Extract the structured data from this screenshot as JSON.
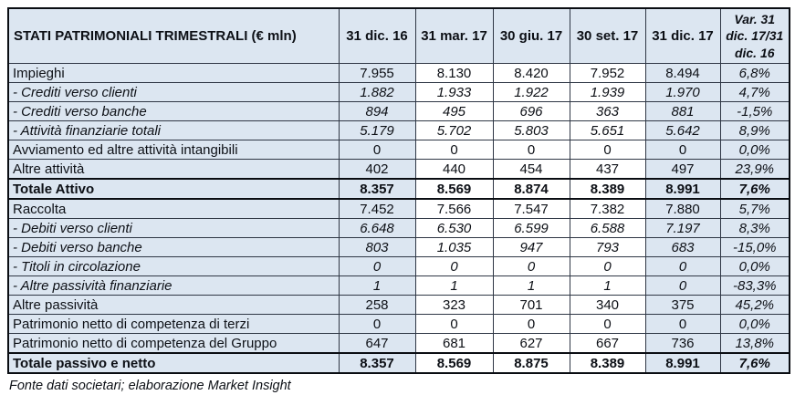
{
  "table": {
    "header": {
      "label": "STATI PATRIMONIALI TRIMESTRALI (€ mln)",
      "columns": [
        "31 dic. 16",
        "31 mar. 17",
        "30 giu. 17",
        "30 set. 17",
        "31 dic. 17"
      ],
      "var_column": "Var. 31 dic. 17/31 dic. 16"
    },
    "rows": [
      {
        "label": "Impieghi",
        "values": [
          "7.955",
          "8.130",
          "8.420",
          "7.952",
          "8.494"
        ],
        "var": "6,8%",
        "style": "normal"
      },
      {
        "label": "- Crediti verso clienti",
        "values": [
          "1.882",
          "1.933",
          "1.922",
          "1.939",
          "1.970"
        ],
        "var": "4,7%",
        "style": "sub"
      },
      {
        "label": "- Crediti verso banche",
        "values": [
          "894",
          "495",
          "696",
          "363",
          "881"
        ],
        "var": "-1,5%",
        "style": "sub"
      },
      {
        "label": "- Attività finanziarie totali",
        "values": [
          "5.179",
          "5.702",
          "5.803",
          "5.651",
          "5.642"
        ],
        "var": "8,9%",
        "style": "sub"
      },
      {
        "label": "Avviamento ed altre attività intangibili",
        "values": [
          "0",
          "0",
          "0",
          "0",
          "0"
        ],
        "var": "0,0%",
        "style": "normal"
      },
      {
        "label": "Altre attività",
        "values": [
          "402",
          "440",
          "454",
          "437",
          "497"
        ],
        "var": "23,9%",
        "style": "normal"
      },
      {
        "label": "Totale Attivo",
        "values": [
          "8.357",
          "8.569",
          "8.874",
          "8.389",
          "8.991"
        ],
        "var": "7,6%",
        "style": "total"
      },
      {
        "label": "Raccolta",
        "values": [
          "7.452",
          "7.566",
          "7.547",
          "7.382",
          "7.880"
        ],
        "var": "5,7%",
        "style": "normal"
      },
      {
        "label": "- Debiti verso clienti",
        "values": [
          "6.648",
          "6.530",
          "6.599",
          "6.588",
          "7.197"
        ],
        "var": "8,3%",
        "style": "sub"
      },
      {
        "label": "- Debiti verso banche",
        "values": [
          "803",
          "1.035",
          "947",
          "793",
          "683"
        ],
        "var": "-15,0%",
        "style": "sub"
      },
      {
        "label": "- Titoli in circolazione",
        "values": [
          "0",
          "0",
          "0",
          "0",
          "0"
        ],
        "var": "0,0%",
        "style": "sub"
      },
      {
        "label": "- Altre passività finanziarie",
        "values": [
          "1",
          "1",
          "1",
          "1",
          "0"
        ],
        "var": "-83,3%",
        "style": "sub"
      },
      {
        "label": "Altre passività",
        "values": [
          "258",
          "323",
          "701",
          "340",
          "375"
        ],
        "var": "45,2%",
        "style": "normal"
      },
      {
        "label": "Patrimonio netto di competenza di terzi",
        "values": [
          "0",
          "0",
          "0",
          "0",
          "0"
        ],
        "var": "0,0%",
        "style": "normal"
      },
      {
        "label": "Patrimonio netto di competenza del Gruppo",
        "values": [
          "647",
          "681",
          "627",
          "667",
          "736"
        ],
        "var": "13,8%",
        "style": "normal"
      },
      {
        "label": "Totale passivo e netto",
        "values": [
          "8.357",
          "8.569",
          "8.875",
          "8.389",
          "8.991"
        ],
        "var": "7,6%",
        "style": "total"
      }
    ]
  },
  "footer": {
    "source_note": "Fonte dati societari; elaborazione Market Insight"
  },
  "colors": {
    "shaded_cell": "#dce6f1",
    "white_cell": "#ffffff",
    "border_thin": "#2f3745",
    "border_thick": "#0a0d12",
    "text": "#0d1016"
  }
}
